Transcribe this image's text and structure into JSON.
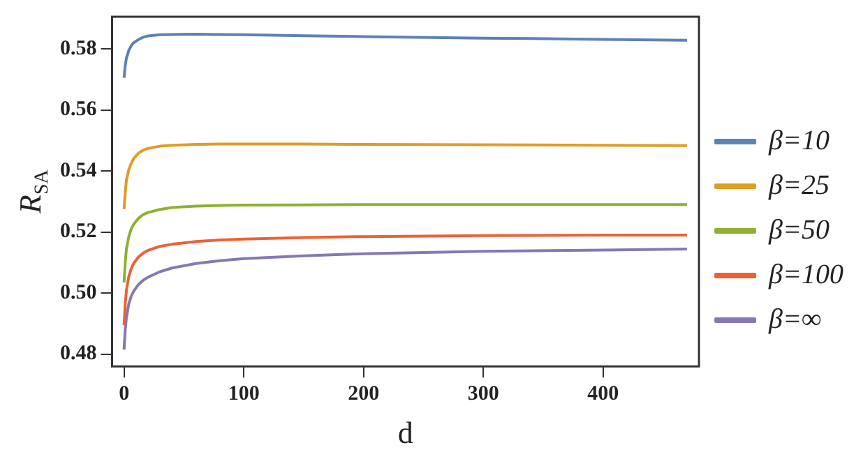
{
  "chart_data": {
    "type": "line",
    "xlabel": "d",
    "ylabel": "R$_{SA}$",
    "xlim": [
      -10,
      480
    ],
    "ylim": [
      0.476,
      0.5905
    ],
    "xticks": [
      0,
      100,
      200,
      300,
      400
    ],
    "yticks": [
      0.48,
      {
        "value": 0.5,
        "label": "0.50"
      },
      0.52,
      0.54,
      0.56,
      0.58
    ],
    "grid": false,
    "legend": "right",
    "marker": "none",
    "line_style": "solid",
    "x": [
      0,
      1,
      2,
      4,
      6,
      8,
      12,
      16,
      20,
      30,
      40,
      60,
      80,
      100,
      150,
      200,
      300,
      400,
      470
    ],
    "series": [
      {
        "name": "β=10",
        "color": "#5e81b5",
        "values": [
          0.5705,
          0.5745,
          0.577,
          0.5795,
          0.581,
          0.582,
          0.583,
          0.5838,
          0.5842,
          0.5846,
          0.5847,
          0.5848,
          0.5847,
          0.5846,
          0.5843,
          0.584,
          0.5835,
          0.5831,
          0.5828
        ]
      },
      {
        "name": "β=25",
        "color": "#e19c24",
        "values": [
          0.5275,
          0.533,
          0.537,
          0.5405,
          0.5425,
          0.544,
          0.5458,
          0.5468,
          0.5474,
          0.5481,
          0.5484,
          0.5487,
          0.5488,
          0.5488,
          0.5488,
          0.5487,
          0.5486,
          0.5484,
          0.5483
        ]
      },
      {
        "name": "β=50",
        "color": "#8fb032",
        "values": [
          0.5035,
          0.51,
          0.5145,
          0.5185,
          0.521,
          0.5225,
          0.5245,
          0.5257,
          0.5264,
          0.5274,
          0.528,
          0.5285,
          0.5287,
          0.5288,
          0.5289,
          0.529,
          0.529,
          0.529,
          0.529
        ]
      },
      {
        "name": "β=100",
        "color": "#eb6235",
        "values": [
          0.4895,
          0.4965,
          0.501,
          0.5055,
          0.508,
          0.5097,
          0.5118,
          0.5131,
          0.514,
          0.5153,
          0.516,
          0.5169,
          0.5174,
          0.5177,
          0.5182,
          0.5185,
          0.5188,
          0.519,
          0.519
        ]
      },
      {
        "name": "β=∞",
        "color": "#8778b3",
        "values": [
          0.4815,
          0.488,
          0.492,
          0.4965,
          0.499,
          0.5006,
          0.5028,
          0.5042,
          0.5052,
          0.507,
          0.5082,
          0.5097,
          0.5106,
          0.5113,
          0.5122,
          0.5129,
          0.5137,
          0.5141,
          0.5144
        ]
      }
    ]
  }
}
